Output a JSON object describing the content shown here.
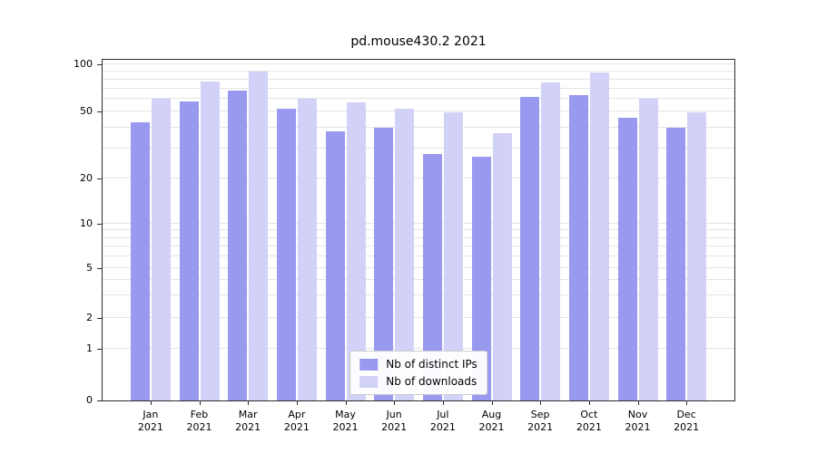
{
  "chart_data": {
    "type": "bar",
    "title": "pd.mouse430.2 2021",
    "categories": [
      "Jan",
      "Feb",
      "Mar",
      "Apr",
      "May",
      "Jun",
      "Jul",
      "Aug",
      "Sep",
      "Oct",
      "Nov",
      "Dec"
    ],
    "year": "2021",
    "series": [
      {
        "name": "Nb of distinct IPs",
        "color": "#9999f0",
        "values": [
          43,
          58,
          68,
          52,
          38,
          40,
          28,
          27,
          62,
          63,
          46,
          40
        ]
      },
      {
        "name": "Nb of downloads",
        "color": "#d2d2f8",
        "values": [
          60,
          78,
          90,
          60,
          57,
          52,
          49,
          37,
          76,
          88,
          60,
          49
        ]
      }
    ],
    "y_ticks": [
      0,
      1,
      2,
      5,
      10,
      20,
      50,
      100
    ],
    "ylim": [
      0,
      100
    ],
    "yscale": "log",
    "grid": true,
    "legend_position": "lower center"
  }
}
